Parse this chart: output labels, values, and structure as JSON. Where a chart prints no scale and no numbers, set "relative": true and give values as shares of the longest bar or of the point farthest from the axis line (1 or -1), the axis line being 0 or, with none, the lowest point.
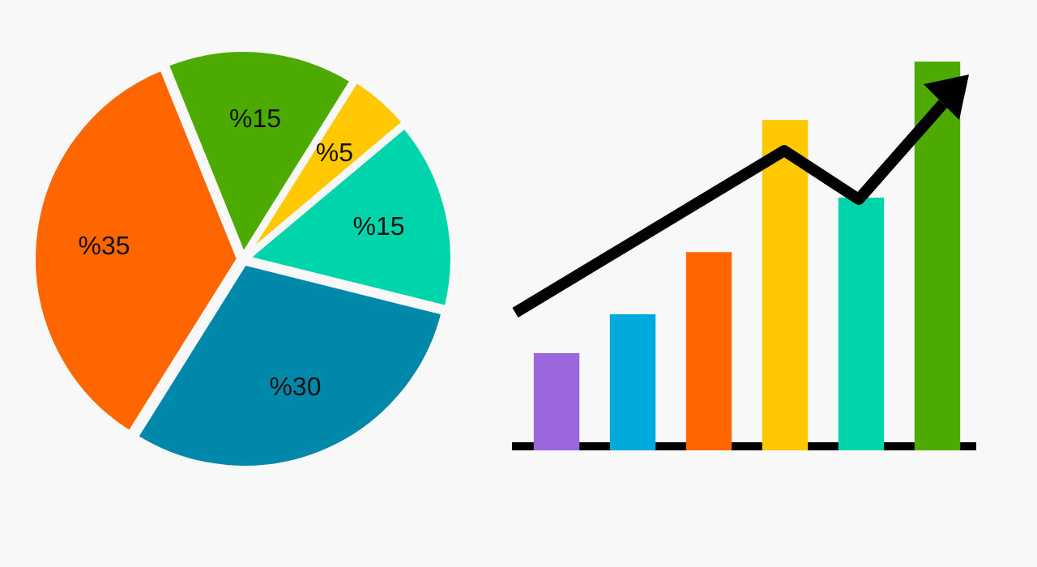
{
  "chart_data": [
    {
      "type": "pie",
      "categories": [
        null,
        null,
        null,
        null,
        null
      ],
      "values": [
        15,
        5,
        15,
        30,
        35
      ],
      "colors": [
        "#4caa00",
        "#ffc800",
        "#00d4aa",
        "#0088aa",
        "#ff6600"
      ],
      "value_labels": [
        "%15",
        "%5",
        "%15",
        "%30",
        "%35"
      ],
      "legend": false
    },
    {
      "type": "bar",
      "relative": true,
      "categories": [
        null,
        null,
        null,
        null,
        null,
        null
      ],
      "values": [
        0.25,
        0.35,
        0.51,
        0.85,
        0.65,
        1
      ],
      "colors": [
        "#9966dd",
        "#00aadd",
        "#ff6600",
        "#ffc800",
        "#00d4aa",
        "#4caa00"
      ],
      "legend": false,
      "grid": false
    }
  ]
}
